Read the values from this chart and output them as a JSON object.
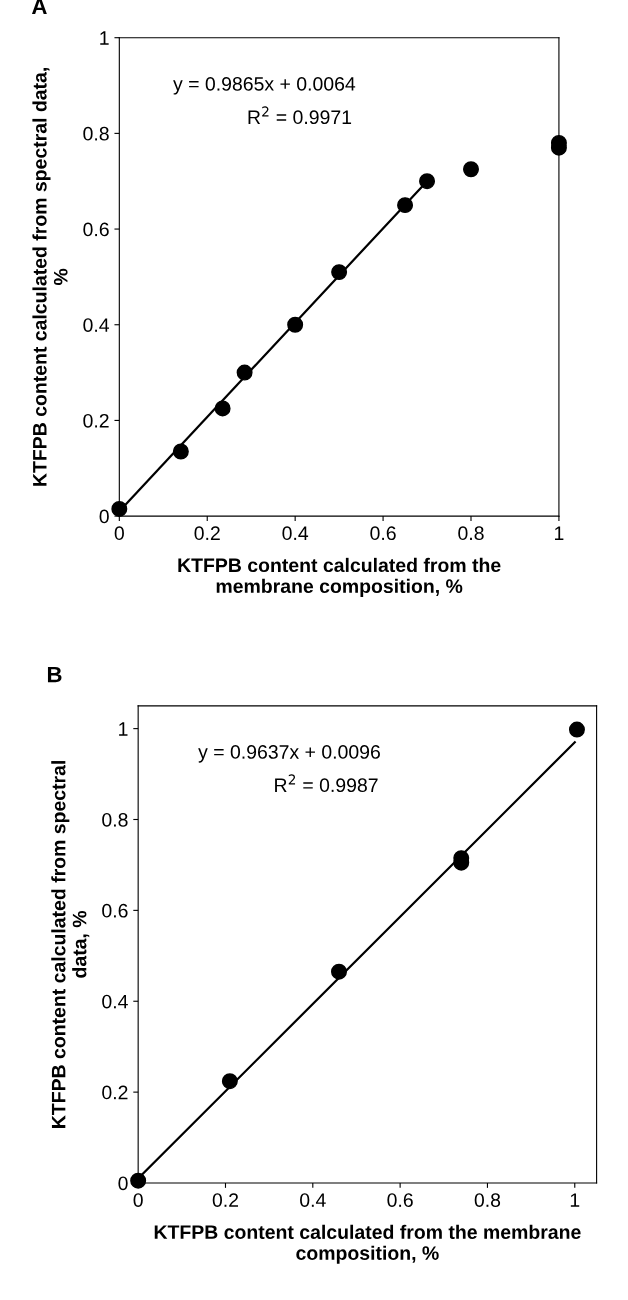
{
  "chart_data": [
    {
      "type": "scatter",
      "title": "A",
      "xlabel": "KTFPB content calculated from the\nmembrane composition, %",
      "ylabel": "KTFPB content calculated from spectral data,\n%",
      "xlim": [
        0,
        1
      ],
      "ylim": [
        0,
        1
      ],
      "xticks": [
        0,
        0.2,
        0.4,
        0.6,
        0.8,
        1
      ],
      "yticks": [
        0,
        0.2,
        0.4,
        0.6,
        0.8,
        1
      ],
      "grid": false,
      "legend": false,
      "annotations": [
        "y = 0.9865x + 0.0064",
        "R$^{2}$ = 0.9971"
      ],
      "series": [
        {
          "marker": "circle",
          "color": "#000000",
          "x": [
            0,
            0.14,
            0.235,
            0.285,
            0.4,
            0.5,
            0.65,
            0.7,
            0.8,
            1.0,
            1.0
          ],
          "values": [
            0.015,
            0.135,
            0.225,
            0.3,
            0.4,
            0.51,
            0.65,
            0.7,
            0.725,
            0.78,
            0.77
          ]
        },
        {
          "type": "line",
          "marker": "none",
          "color": "#000000",
          "x": [
            0,
            0.7
          ],
          "values": [
            0.01,
            0.7
          ]
        }
      ]
    },
    {
      "type": "scatter",
      "title": "B",
      "xlabel": "KTFPB content calculated from the membrane\ncomposition, %",
      "ylabel": "KTFPB content calculated from spectral\ndata, %",
      "xlim": [
        0,
        1.05
      ],
      "ylim": [
        0,
        1.05
      ],
      "xticks": [
        0,
        0.2,
        0.4,
        0.6,
        0.8,
        1
      ],
      "yticks": [
        0,
        0.2,
        0.4,
        0.6,
        0.8,
        1
      ],
      "grid": false,
      "legend": false,
      "annotations": [
        "y = 0.9637x + 0.0096",
        "R$^{2}$ = 0.9987"
      ],
      "series": [
        {
          "marker": "circle",
          "color": "#000000",
          "x": [
            0,
            0.21,
            0.46,
            0.74,
            0.74,
            1.005
          ],
          "values": [
            0.005,
            0.224,
            0.465,
            0.715,
            0.705,
            0.998
          ]
        },
        {
          "type": "line",
          "marker": "none",
          "color": "#000000",
          "x": [
            0,
            1.0
          ],
          "values": [
            0.01,
            0.97
          ]
        }
      ]
    }
  ]
}
